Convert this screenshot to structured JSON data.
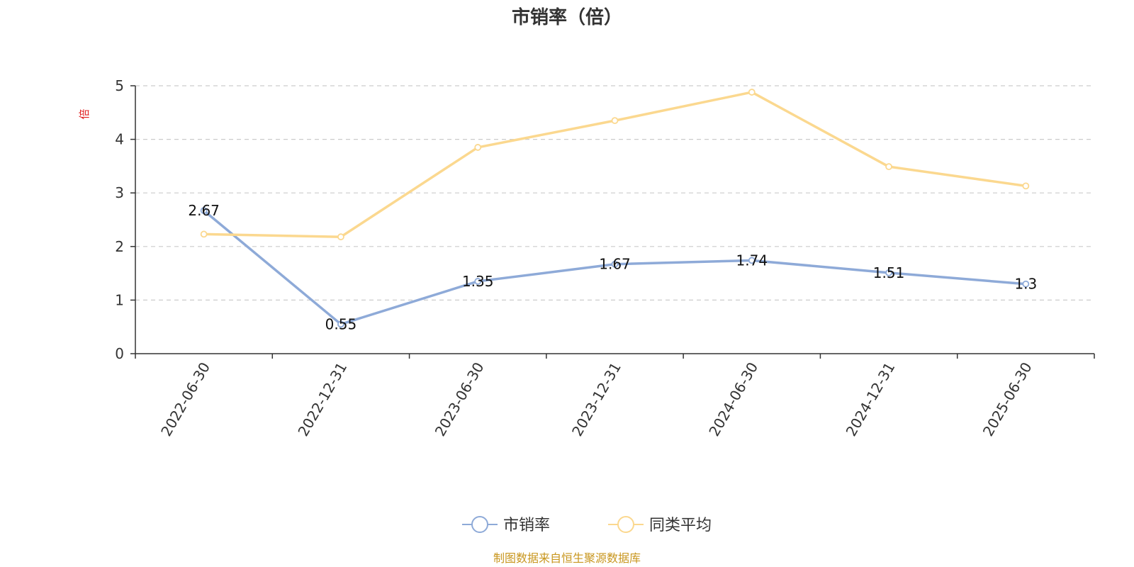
{
  "chart_data": {
    "type": "line",
    "title": "市销率（倍）",
    "ylabel": "倍",
    "xlabel": "",
    "ylim": [
      0,
      5
    ],
    "yticks": [
      0,
      1,
      2,
      3,
      4,
      5
    ],
    "categories": [
      "2022-06-30",
      "2022-12-31",
      "2023-06-30",
      "2023-12-31",
      "2024-06-30",
      "2024-12-31",
      "2025-06-30"
    ],
    "series": [
      {
        "name": "市销率",
        "values": [
          2.67,
          0.55,
          1.35,
          1.67,
          1.74,
          1.51,
          1.3
        ],
        "data_labels": [
          "2.67",
          "0.55",
          "1.35",
          "1.67",
          "1.74",
          "1.51",
          "1.3"
        ],
        "color": "#8eaad8"
      },
      {
        "name": "同类平均",
        "values": [
          2.23,
          2.18,
          3.85,
          4.35,
          4.88,
          3.49,
          3.13
        ],
        "color": "#fbd88f"
      }
    ],
    "grid": "horizontal-dashed",
    "legend_position": "bottom-center"
  },
  "source_note": "制图数据来自恒生聚源数据库"
}
